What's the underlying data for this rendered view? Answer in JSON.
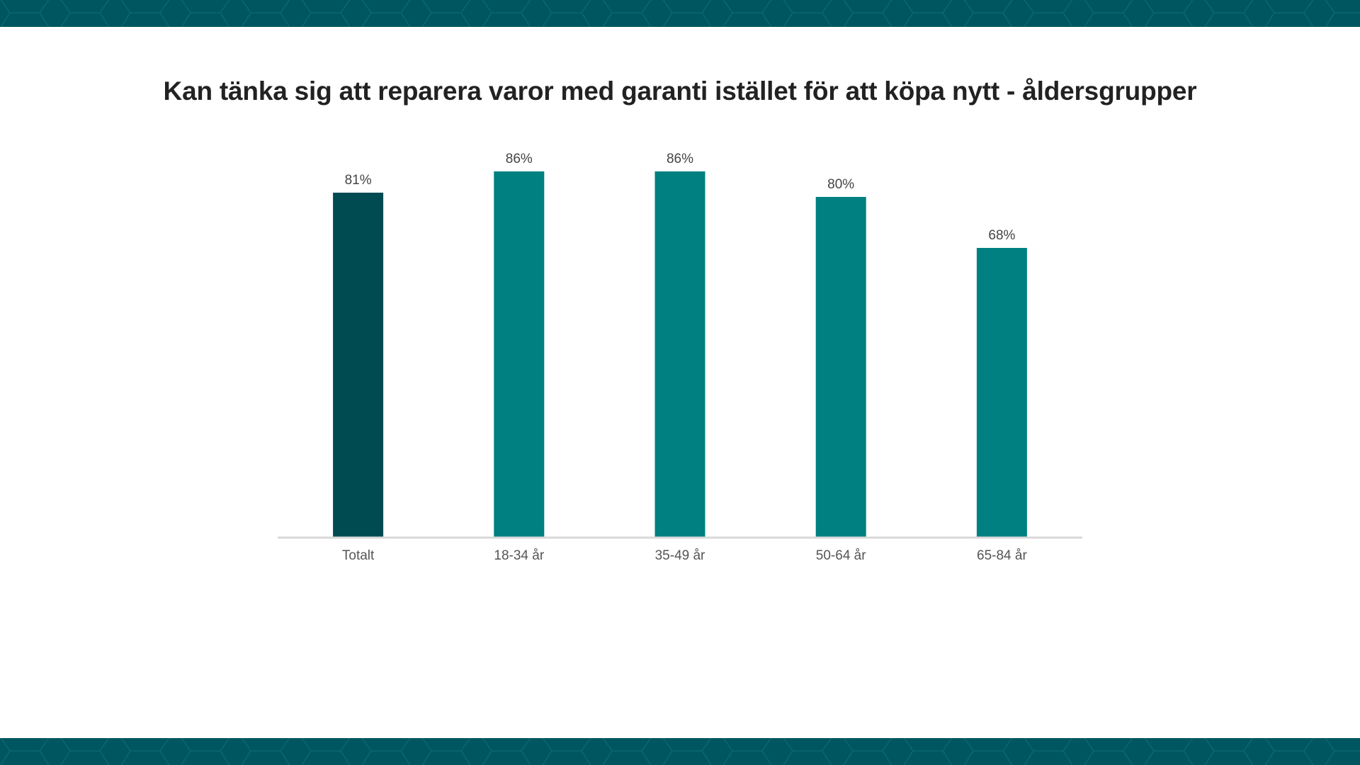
{
  "colors": {
    "band": "#005660",
    "band_pattern": "#0a6670",
    "bar_total": "#004A52",
    "bar_group": "#008080",
    "axis": "#d9d9d9"
  },
  "chart_data": {
    "type": "bar",
    "title": "Kan tänka sig att reparera varor med garanti istället för att köpa nytt - åldersgrupper",
    "categories": [
      "Totalt",
      "18-34 år",
      "35-49 år",
      "50-64 år",
      "65-84 år"
    ],
    "values": [
      81,
      86,
      86,
      80,
      68
    ],
    "value_labels": [
      "81%",
      "86%",
      "86%",
      "80%",
      "68%"
    ],
    "highlight": [
      true,
      false,
      false,
      false,
      false
    ],
    "xlabel": "",
    "ylabel": "",
    "ylim": [
      0,
      100
    ],
    "grid": false,
    "legend": "none"
  }
}
